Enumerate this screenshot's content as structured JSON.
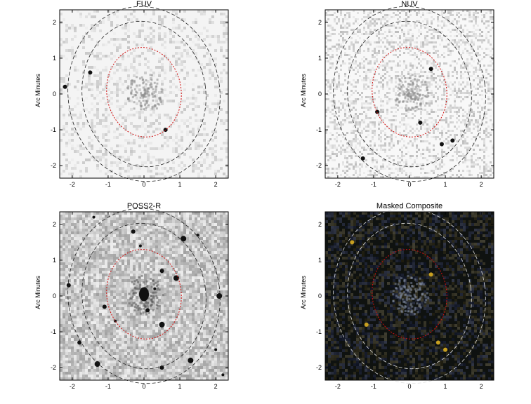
{
  "panels": [
    {
      "id": "fuv",
      "title": "FUV",
      "ylabel": "Arc Minutes",
      "background": "#f4f4f4",
      "noise": "light",
      "composite": false
    },
    {
      "id": "nuv",
      "title": "NUV",
      "ylabel": "Arc Minutes",
      "background": "#f8f8f8",
      "noise": "fine",
      "composite": false
    },
    {
      "id": "poss2r",
      "title": "POSS2-R",
      "ylabel": "Arc Minutes",
      "background": "#bdbdbd",
      "noise": "optical",
      "composite": false
    },
    {
      "id": "composite",
      "title": "Masked Composite",
      "ylabel": "Arc Minutes",
      "background": "#0f1210",
      "noise": "color",
      "composite": true
    }
  ],
  "axes": {
    "x_ticks": [
      "-2",
      "-1",
      "0",
      "1",
      "2"
    ],
    "y_ticks": [
      "2",
      "1",
      "0",
      "-1",
      "-2"
    ],
    "range": [
      -2.35,
      2.35
    ]
  },
  "colors": {
    "inner_ellipse": "#d01010",
    "outer_ellipses_dark": "#202020",
    "outer_ellipses_light": "#e0e0e0"
  }
}
